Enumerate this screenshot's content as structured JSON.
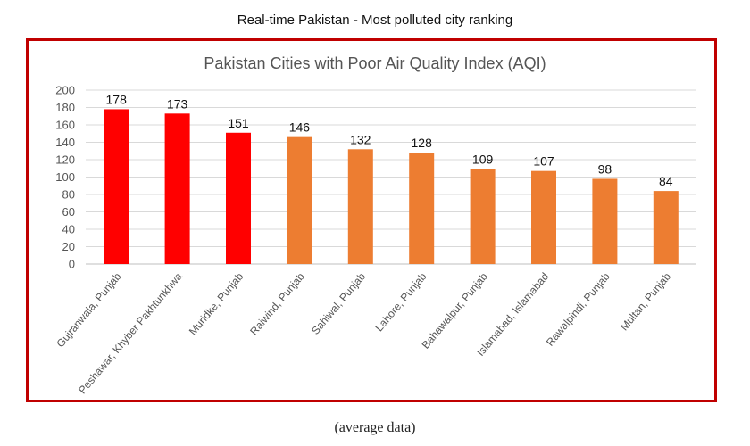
{
  "header": {
    "title": "Real-time Pakistan - Most polluted city ranking"
  },
  "footer": {
    "note": "(average data)"
  },
  "chart_data": {
    "type": "bar",
    "title": "Pakistan Cities with Poor Air Quality Index (AQI)",
    "xlabel": "",
    "ylabel": "",
    "ylim": [
      0,
      200
    ],
    "yticks": [
      0,
      20,
      40,
      60,
      80,
      100,
      120,
      140,
      160,
      180,
      200
    ],
    "grid": true,
    "categories": [
      "Gujranwala, Punjab",
      "Peshawar, Khyber Pakhtunkhwa",
      "Muridke, Punjab",
      "Raiwind, Punjab",
      "Sahiwal, Punjab",
      "Lahore, Punjab",
      "Bahawalpur, Punjab",
      "Islamabad, Islamabad",
      "Rawalpindi, Punjab",
      "Multan, Punjab"
    ],
    "values": [
      178,
      173,
      151,
      146,
      132,
      128,
      109,
      107,
      98,
      84
    ],
    "colors": [
      "#ff0000",
      "#ff0000",
      "#ff0000",
      "#ed7d31",
      "#ed7d31",
      "#ed7d31",
      "#ed7d31",
      "#ed7d31",
      "#ed7d31",
      "#ed7d31"
    ]
  }
}
